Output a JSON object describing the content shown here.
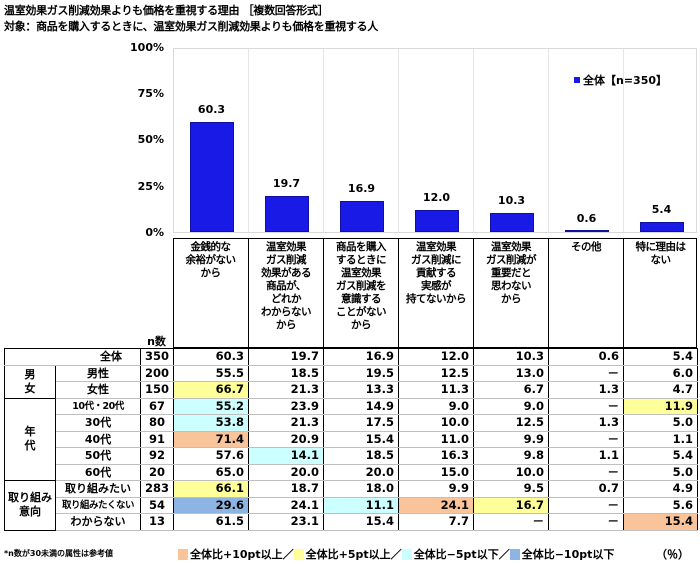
{
  "titles": {
    "main": "温室効果ガス削減効果よりも価格を重視する理由 ［複数回答形式］",
    "target": "対象：商品を購入するときに、温室効果ガス削減効果よりも価格を重視する人"
  },
  "colors": {
    "bar": "#1a1ae6",
    "plus10": "#f9c49a",
    "plus5": "#ffff99",
    "minus5": "#ccffff",
    "minus10": "#8db4e2"
  },
  "chart_data": {
    "type": "bar",
    "title": "温室効果ガス削減効果よりも価格を重視する理由 ［複数回答形式］",
    "subtitle": "対象：商品を購入するときに、温室効果ガス削減効果よりも価格を重視する人",
    "categories": [
      "金銭的な余裕がないから",
      "温室効果ガス削減効果がある商品が、どれかわからないから",
      "商品を購入するときに温室効果ガス削減を意識することがないから",
      "温室効果ガス削減に貢献する実感が持てないから",
      "温室効果ガス削減が重要だと思わないから",
      "その他",
      "特に理由はない"
    ],
    "series": [
      {
        "name": "全体【n=350】",
        "values": [
          60.3,
          19.7,
          16.9,
          12.0,
          10.3,
          0.6,
          5.4
        ]
      }
    ],
    "xlabel": "",
    "ylabel": "",
    "ylim": [
      0,
      100
    ],
    "yticks": [
      "0%",
      "25%",
      "50%",
      "75%",
      "100%"
    ],
    "legend_position": "top-right",
    "grid": true
  },
  "chart": {
    "yticks": [
      "100%",
      "75%",
      "50%",
      "25%",
      "0%"
    ],
    "legend": "全体【n=350】",
    "value_labels": [
      "60.3",
      "19.7",
      "16.9",
      "12.0",
      "10.3",
      "0.6",
      "5.4"
    ]
  },
  "header": {
    "n_label": "n数",
    "columns": [
      [
        "金銭的な",
        "余裕がない",
        "から"
      ],
      [
        "温室効果",
        "ガス削減",
        "効果がある",
        "商品が、",
        "どれか",
        "わからない",
        "から"
      ],
      [
        "商品を購入",
        "するときに",
        "温室効果",
        "ガス削減を",
        "意識する",
        "ことがない",
        "から"
      ],
      [
        "温室効果",
        "ガス削減に",
        "貢献する",
        "実感が",
        "持てないから"
      ],
      [
        "温室効果",
        "ガス削減が",
        "重要だと",
        "思わない",
        "から"
      ],
      [
        "その他"
      ],
      [
        "特に理由は",
        "ない"
      ]
    ]
  },
  "table": {
    "groups": {
      "gender": [
        "男",
        "女"
      ],
      "age": [
        "年",
        "代"
      ],
      "intent": [
        "取り組み",
        "意向"
      ]
    },
    "rows": [
      {
        "label": "全体",
        "n": "350",
        "values": [
          "60.3",
          "19.7",
          "16.9",
          "12.0",
          "10.3",
          "0.6",
          "5.4"
        ],
        "hl": [
          "",
          "",
          "",
          "",
          "",
          "",
          ""
        ]
      },
      {
        "label": "男性",
        "n": "200",
        "values": [
          "55.5",
          "18.5",
          "19.5",
          "12.5",
          "13.0",
          "－",
          "6.0"
        ],
        "hl": [
          "",
          "",
          "",
          "",
          "",
          "",
          ""
        ]
      },
      {
        "label": "女性",
        "n": "150",
        "values": [
          "66.7",
          "21.3",
          "13.3",
          "11.3",
          "6.7",
          "1.3",
          "4.7"
        ],
        "hl": [
          "c-yellow",
          "",
          "",
          "",
          "",
          "",
          ""
        ]
      },
      {
        "label": "10代・20代",
        "n": "67",
        "values": [
          "55.2",
          "23.9",
          "14.9",
          "9.0",
          "9.0",
          "－",
          "11.9"
        ],
        "hl": [
          "c-cyan",
          "",
          "",
          "",
          "",
          "",
          "c-yellow"
        ]
      },
      {
        "label": "30代",
        "n": "80",
        "values": [
          "53.8",
          "21.3",
          "17.5",
          "10.0",
          "12.5",
          "1.3",
          "5.0"
        ],
        "hl": [
          "c-cyan",
          "",
          "",
          "",
          "",
          "",
          ""
        ]
      },
      {
        "label": "40代",
        "n": "91",
        "values": [
          "71.4",
          "20.9",
          "15.4",
          "11.0",
          "9.9",
          "－",
          "1.1"
        ],
        "hl": [
          "c-orange",
          "",
          "",
          "",
          "",
          "",
          ""
        ]
      },
      {
        "label": "50代",
        "n": "92",
        "values": [
          "57.6",
          "14.1",
          "18.5",
          "16.3",
          "9.8",
          "1.1",
          "5.4"
        ],
        "hl": [
          "",
          "c-cyan",
          "",
          "",
          "",
          "",
          ""
        ]
      },
      {
        "label": "60代",
        "n": "20",
        "values": [
          "65.0",
          "20.0",
          "20.0",
          "15.0",
          "10.0",
          "－",
          "5.0"
        ],
        "hl": [
          "",
          "",
          "",
          "",
          "",
          "",
          ""
        ]
      },
      {
        "label": "取り組みたい",
        "n": "283",
        "values": [
          "66.1",
          "18.7",
          "18.0",
          "9.9",
          "9.5",
          "0.7",
          "4.9"
        ],
        "hl": [
          "c-yellow",
          "",
          "",
          "",
          "",
          "",
          ""
        ]
      },
      {
        "label": "取り組みたくない",
        "n": "54",
        "values": [
          "29.6",
          "24.1",
          "11.1",
          "24.1",
          "16.7",
          "－",
          "5.6"
        ],
        "hl": [
          "c-blue",
          "",
          "c-cyan",
          "c-orange",
          "c-yellow",
          "",
          ""
        ]
      },
      {
        "label": "わからない",
        "n": "13",
        "values": [
          "61.5",
          "23.1",
          "15.4",
          "7.7",
          "－",
          "－",
          "15.4"
        ],
        "hl": [
          "",
          "",
          "",
          "",
          "",
          "",
          "c-orange"
        ]
      }
    ]
  },
  "footer": {
    "note": "*n数が30未満の属性は参考値",
    "key_plus10": "全体比+10pt以上／",
    "key_plus5": "全体比+5pt以上／",
    "key_minus5": "全体比−5pt以下／",
    "key_minus10": "全体比−10pt以下",
    "unit": "（％）"
  }
}
